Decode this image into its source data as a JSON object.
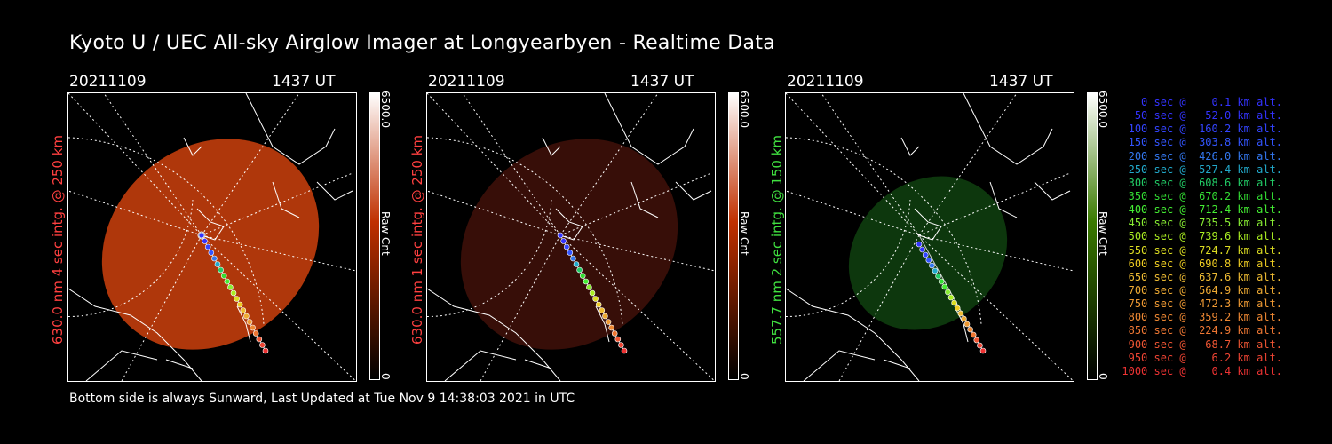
{
  "page": {
    "title": "Kyoto U / UEC All-sky Airglow Imager at Longyearbyen - Realtime Data",
    "footer": "Bottom side is always Sunward, Last Updated at Tue Nov  9 14:38:03 2021 in UTC"
  },
  "panels": [
    {
      "date": "20211109",
      "time": "1437 UT",
      "side_label": "630.0 nm 4 sec intg. @ 250 km",
      "side_color": "#ff4040",
      "cbar_max": "6500.0",
      "cbar_min": "0",
      "cbar_label": "Raw Cnt",
      "cbar_color": "#c03000",
      "fill_color": "#b83a0c",
      "fill_opacity": 0.95
    },
    {
      "date": "20211109",
      "time": "1437 UT",
      "side_label": "630.0 nm 1 sec intg. @ 250 km",
      "side_color": "#ff4040",
      "cbar_max": "6500.0",
      "cbar_min": "0",
      "cbar_label": "Raw Cnt",
      "cbar_color": "#c03000",
      "fill_color": "#3a0f08",
      "fill_opacity": 0.95
    },
    {
      "date": "20211109",
      "time": "1437 UT",
      "side_label": "557.7 nm 2 sec intg. @ 150 km",
      "side_color": "#40e040",
      "cbar_max": "6500.0",
      "cbar_min": "0",
      "cbar_label": "Raw Cnt",
      "cbar_color": "#3a7a00",
      "fill_color": "#0e3a0e",
      "fill_opacity": 0.95
    }
  ],
  "legend": [
    {
      "text": "   0 sec @    0.1 km alt.",
      "color": "#3333ff"
    },
    {
      "text": "  50 sec @   52.0 km alt.",
      "color": "#3333ff"
    },
    {
      "text": " 100 sec @  160.2 km alt.",
      "color": "#3344ff"
    },
    {
      "text": " 150 sec @  303.8 km alt.",
      "color": "#3355ff"
    },
    {
      "text": " 200 sec @  426.0 km alt.",
      "color": "#3377ee"
    },
    {
      "text": " 250 sec @  527.4 km alt.",
      "color": "#22aacc"
    },
    {
      "text": " 300 sec @  608.6 km alt.",
      "color": "#22cc66"
    },
    {
      "text": " 350 sec @  670.2 km alt.",
      "color": "#33dd33"
    },
    {
      "text": " 400 sec @  712.4 km alt.",
      "color": "#44ee33"
    },
    {
      "text": " 450 sec @  735.5 km alt.",
      "color": "#88ee33"
    },
    {
      "text": " 500 sec @  739.6 km alt.",
      "color": "#aaee22"
    },
    {
      "text": " 550 sec @  724.7 km alt.",
      "color": "#dddd22"
    },
    {
      "text": " 600 sec @  690.8 km alt.",
      "color": "#eecc22"
    },
    {
      "text": " 650 sec @  637.6 km alt.",
      "color": "#eebb33"
    },
    {
      "text": " 700 sec @  564.9 km alt.",
      "color": "#eeaa33"
    },
    {
      "text": " 750 sec @  472.3 km alt.",
      "color": "#ee9933"
    },
    {
      "text": " 800 sec @  359.2 km alt.",
      "color": "#ee8833"
    },
    {
      "text": " 850 sec @  224.9 km alt.",
      "color": "#ee7733"
    },
    {
      "text": " 900 sec @   68.7 km alt.",
      "color": "#ee5533"
    },
    {
      "text": " 950 sec @    6.2 km alt.",
      "color": "#ee4433"
    },
    {
      "text": "1000 sec @    0.4 km alt.",
      "color": "#ee3333"
    }
  ]
}
